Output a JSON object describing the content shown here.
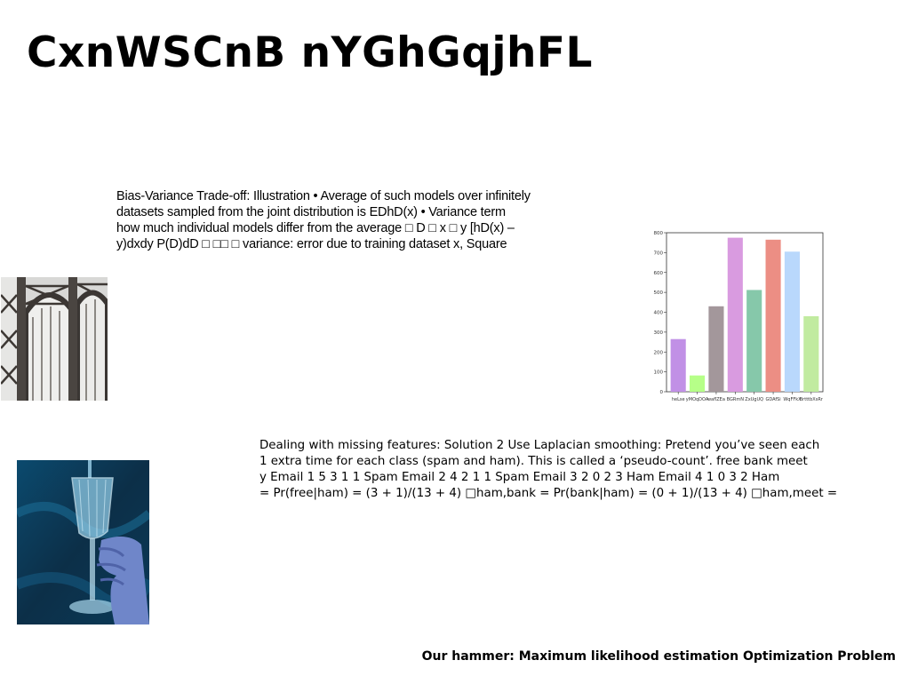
{
  "slide": {
    "title": "CxnWSCnB nYGhGqjhFL",
    "paragraph1": {
      "lines": [
        "Bias-Variance Trade-off: Illustration • Average of such models over infinitely",
        "datasets sampled from the joint distribution is EDhD(x) • Variance term",
        "how much individual models differ from the average □ D □ x □ y [hD(x) –",
        "y)dxdy P(D)dD □ □□ □ variance: error due to training dataset x, Square"
      ]
    },
    "paragraph2": {
      "lines": [
        "Dealing with missing features: Solution 2 Use Laplacian smoothing: Pretend you’ve seen each",
        "1 extra time for each class (spam and ham). This is called a ‘pseudo-count’. free bank meet",
        "y Email 1 5 3 1 1 Spam Email 2 4 2 1 1 Spam Email 3 2 0 2 3 Ham Email 4 1 0 3 2 Ham",
        "= Pr(free|ham) = (3 + 1)/(13 + 4) □ham,bank = Pr(bank|ham) = (0 + 1)/(13 + 4) □ham,meet ="
      ]
    },
    "footer": "Our hammer: Maximum likelihood estimation Optimization Problem"
  },
  "chart_data": {
    "type": "bar",
    "categories": [
      "heLse",
      "yMOqDOA",
      "waflZEa",
      "BGRmN",
      "ZxUgUQ",
      "GDAfSi",
      "WqFFkX",
      "BrtttbXsRr"
    ],
    "values": [
      265,
      82,
      430,
      775,
      512,
      765,
      705,
      380
    ],
    "colors": [
      "#c190e6",
      "#b6ff88",
      "#a3979b",
      "#d99be0",
      "#86c8aa",
      "#ec8e84",
      "#b9d8fc",
      "#c1eba0"
    ],
    "ylim": [
      0,
      800
    ],
    "yticks": [
      0,
      100,
      200,
      300,
      400,
      500,
      600,
      700,
      800
    ],
    "title": "",
    "xlabel": "",
    "ylabel": "",
    "grid": false
  }
}
